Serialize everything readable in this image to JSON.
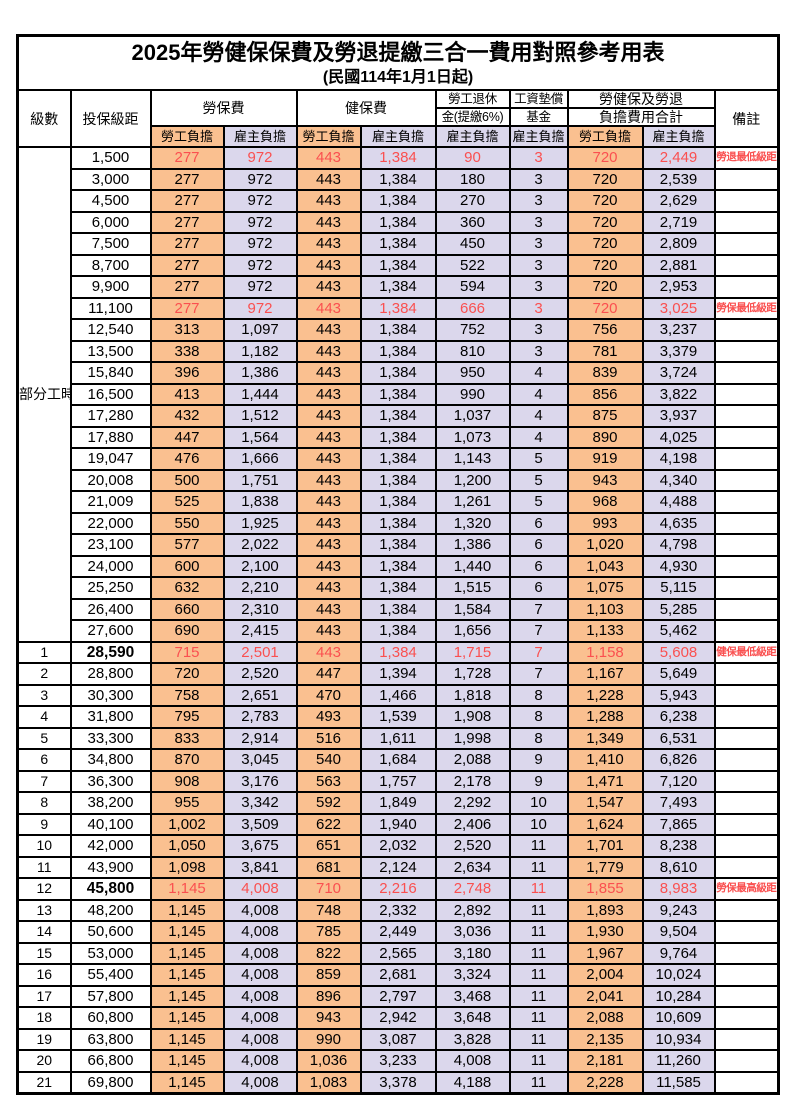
{
  "title": "2025年勞健保保費及勞退提繳三合一費用對照參考用表",
  "subtitle": "(民國114年1月1日起)",
  "header": {
    "level": "級數",
    "bracket": "投保級距",
    "labor_insurance": "勞保費",
    "health_insurance": "健保費",
    "pension_line1": "勞工退休",
    "pension_line2": "金(提繳6%)",
    "wage_fund_line1": "工資墊償",
    "wage_fund_line2": "基金",
    "total_line1": "勞健保及勞退",
    "total_line2": "負擔費用合計",
    "remark": "備註",
    "employee": "勞工負擔",
    "employer": "雇主負擔"
  },
  "part_time_label": "部分工時",
  "colors": {
    "employee_bg": "#FAC090",
    "employer_bg": "#DBD7EC",
    "highlight_red": "#FA5050",
    "border": "#000000"
  },
  "part_time_rows": [
    {
      "bracket": "1,500",
      "values": [
        "277",
        "972",
        "443",
        "1,384",
        "90",
        "3",
        "720",
        "2,449"
      ],
      "remark": "勞退最低級距",
      "red": true
    },
    {
      "bracket": "3,000",
      "values": [
        "277",
        "972",
        "443",
        "1,384",
        "180",
        "3",
        "720",
        "2,539"
      ]
    },
    {
      "bracket": "4,500",
      "values": [
        "277",
        "972",
        "443",
        "1,384",
        "270",
        "3",
        "720",
        "2,629"
      ]
    },
    {
      "bracket": "6,000",
      "values": [
        "277",
        "972",
        "443",
        "1,384",
        "360",
        "3",
        "720",
        "2,719"
      ]
    },
    {
      "bracket": "7,500",
      "values": [
        "277",
        "972",
        "443",
        "1,384",
        "450",
        "3",
        "720",
        "2,809"
      ]
    },
    {
      "bracket": "8,700",
      "values": [
        "277",
        "972",
        "443",
        "1,384",
        "522",
        "3",
        "720",
        "2,881"
      ]
    },
    {
      "bracket": "9,900",
      "values": [
        "277",
        "972",
        "443",
        "1,384",
        "594",
        "3",
        "720",
        "2,953"
      ]
    },
    {
      "bracket": "11,100",
      "values": [
        "277",
        "972",
        "443",
        "1,384",
        "666",
        "3",
        "720",
        "3,025"
      ],
      "remark": "勞保最低級距",
      "red": true
    },
    {
      "bracket": "12,540",
      "values": [
        "313",
        "1,097",
        "443",
        "1,384",
        "752",
        "3",
        "756",
        "3,237"
      ]
    },
    {
      "bracket": "13,500",
      "values": [
        "338",
        "1,182",
        "443",
        "1,384",
        "810",
        "3",
        "781",
        "3,379"
      ]
    },
    {
      "bracket": "15,840",
      "values": [
        "396",
        "1,386",
        "443",
        "1,384",
        "950",
        "4",
        "839",
        "3,724"
      ]
    },
    {
      "bracket": "16,500",
      "values": [
        "413",
        "1,444",
        "443",
        "1,384",
        "990",
        "4",
        "856",
        "3,822"
      ]
    },
    {
      "bracket": "17,280",
      "values": [
        "432",
        "1,512",
        "443",
        "1,384",
        "1,037",
        "4",
        "875",
        "3,937"
      ]
    },
    {
      "bracket": "17,880",
      "values": [
        "447",
        "1,564",
        "443",
        "1,384",
        "1,073",
        "4",
        "890",
        "4,025"
      ]
    },
    {
      "bracket": "19,047",
      "values": [
        "476",
        "1,666",
        "443",
        "1,384",
        "1,143",
        "5",
        "919",
        "4,198"
      ]
    },
    {
      "bracket": "20,008",
      "values": [
        "500",
        "1,751",
        "443",
        "1,384",
        "1,200",
        "5",
        "943",
        "4,340"
      ]
    },
    {
      "bracket": "21,009",
      "values": [
        "525",
        "1,838",
        "443",
        "1,384",
        "1,261",
        "5",
        "968",
        "4,488"
      ]
    },
    {
      "bracket": "22,000",
      "values": [
        "550",
        "1,925",
        "443",
        "1,384",
        "1,320",
        "6",
        "993",
        "4,635"
      ]
    },
    {
      "bracket": "23,100",
      "values": [
        "577",
        "2,022",
        "443",
        "1,384",
        "1,386",
        "6",
        "1,020",
        "4,798"
      ]
    },
    {
      "bracket": "24,000",
      "values": [
        "600",
        "2,100",
        "443",
        "1,384",
        "1,440",
        "6",
        "1,043",
        "4,930"
      ]
    },
    {
      "bracket": "25,250",
      "values": [
        "632",
        "2,210",
        "443",
        "1,384",
        "1,515",
        "6",
        "1,075",
        "5,115"
      ]
    },
    {
      "bracket": "26,400",
      "values": [
        "660",
        "2,310",
        "443",
        "1,384",
        "1,584",
        "7",
        "1,103",
        "5,285"
      ]
    },
    {
      "bracket": "27,600",
      "values": [
        "690",
        "2,415",
        "443",
        "1,384",
        "1,656",
        "7",
        "1,133",
        "5,462"
      ]
    }
  ],
  "level_rows": [
    {
      "level": "1",
      "bracket": "28,590",
      "bracket_bold": true,
      "values": [
        "715",
        "2,501",
        "443",
        "1,384",
        "1,715",
        "7",
        "1,158",
        "5,608"
      ],
      "remark": "健保最低級距",
      "red": true
    },
    {
      "level": "2",
      "bracket": "28,800",
      "values": [
        "720",
        "2,520",
        "447",
        "1,394",
        "1,728",
        "7",
        "1,167",
        "5,649"
      ]
    },
    {
      "level": "3",
      "bracket": "30,300",
      "values": [
        "758",
        "2,651",
        "470",
        "1,466",
        "1,818",
        "8",
        "1,228",
        "5,943"
      ]
    },
    {
      "level": "4",
      "bracket": "31,800",
      "values": [
        "795",
        "2,783",
        "493",
        "1,539",
        "1,908",
        "8",
        "1,288",
        "6,238"
      ]
    },
    {
      "level": "5",
      "bracket": "33,300",
      "values": [
        "833",
        "2,914",
        "516",
        "1,611",
        "1,998",
        "8",
        "1,349",
        "6,531"
      ]
    },
    {
      "level": "6",
      "bracket": "34,800",
      "values": [
        "870",
        "3,045",
        "540",
        "1,684",
        "2,088",
        "9",
        "1,410",
        "6,826"
      ]
    },
    {
      "level": "7",
      "bracket": "36,300",
      "values": [
        "908",
        "3,176",
        "563",
        "1,757",
        "2,178",
        "9",
        "1,471",
        "7,120"
      ]
    },
    {
      "level": "8",
      "bracket": "38,200",
      "values": [
        "955",
        "3,342",
        "592",
        "1,849",
        "2,292",
        "10",
        "1,547",
        "7,493"
      ]
    },
    {
      "level": "9",
      "bracket": "40,100",
      "values": [
        "1,002",
        "3,509",
        "622",
        "1,940",
        "2,406",
        "10",
        "1,624",
        "7,865"
      ]
    },
    {
      "level": "10",
      "bracket": "42,000",
      "values": [
        "1,050",
        "3,675",
        "651",
        "2,032",
        "2,520",
        "11",
        "1,701",
        "8,238"
      ]
    },
    {
      "level": "11",
      "bracket": "43,900",
      "values": [
        "1,098",
        "3,841",
        "681",
        "2,124",
        "2,634",
        "11",
        "1,779",
        "8,610"
      ]
    },
    {
      "level": "12",
      "bracket": "45,800",
      "bracket_bold": true,
      "values": [
        "1,145",
        "4,008",
        "710",
        "2,216",
        "2,748",
        "11",
        "1,855",
        "8,983"
      ],
      "remark": "勞保最高級距",
      "red": true
    },
    {
      "level": "13",
      "bracket": "48,200",
      "values": [
        "1,145",
        "4,008",
        "748",
        "2,332",
        "2,892",
        "11",
        "1,893",
        "9,243"
      ]
    },
    {
      "level": "14",
      "bracket": "50,600",
      "values": [
        "1,145",
        "4,008",
        "785",
        "2,449",
        "3,036",
        "11",
        "1,930",
        "9,504"
      ]
    },
    {
      "level": "15",
      "bracket": "53,000",
      "values": [
        "1,145",
        "4,008",
        "822",
        "2,565",
        "3,180",
        "11",
        "1,967",
        "9,764"
      ]
    },
    {
      "level": "16",
      "bracket": "55,400",
      "values": [
        "1,145",
        "4,008",
        "859",
        "2,681",
        "3,324",
        "11",
        "2,004",
        "10,024"
      ]
    },
    {
      "level": "17",
      "bracket": "57,800",
      "values": [
        "1,145",
        "4,008",
        "896",
        "2,797",
        "3,468",
        "11",
        "2,041",
        "10,284"
      ]
    },
    {
      "level": "18",
      "bracket": "60,800",
      "values": [
        "1,145",
        "4,008",
        "943",
        "2,942",
        "3,648",
        "11",
        "2,088",
        "10,609"
      ]
    },
    {
      "level": "19",
      "bracket": "63,800",
      "values": [
        "1,145",
        "4,008",
        "990",
        "3,087",
        "3,828",
        "11",
        "2,135",
        "10,934"
      ]
    },
    {
      "level": "20",
      "bracket": "66,800",
      "values": [
        "1,145",
        "4,008",
        "1,036",
        "3,233",
        "4,008",
        "11",
        "2,181",
        "11,260"
      ]
    },
    {
      "level": "21",
      "bracket": "69,800",
      "values": [
        "1,145",
        "4,008",
        "1,083",
        "3,378",
        "4,188",
        "11",
        "2,228",
        "11,585"
      ]
    }
  ]
}
